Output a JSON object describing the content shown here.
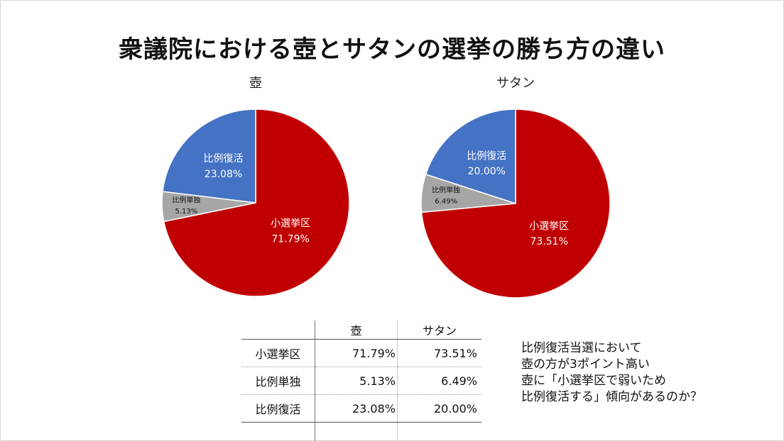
{
  "title": "衆議院における壺とサタンの選挙の勝ち方の違い",
  "chart_data": {
    "type": "pie",
    "charts": [
      {
        "title": "壺",
        "slices": [
          {
            "label": "小選挙区",
            "value": 71.79,
            "text": "71.79%",
            "color": "#c00000"
          },
          {
            "label": "比例単独",
            "value": 5.13,
            "text": "5.13%",
            "color": "#a6a6a6"
          },
          {
            "label": "比例復活",
            "value": 23.08,
            "text": "23.08%",
            "color": "#4472c4"
          }
        ]
      },
      {
        "title": "サタン",
        "slices": [
          {
            "label": "小選挙区",
            "value": 73.51,
            "text": "73.51%",
            "color": "#c00000"
          },
          {
            "label": "比例単独",
            "value": 6.49,
            "text": "6.49%",
            "color": "#a6a6a6"
          },
          {
            "label": "比例復活",
            "value": 20.0,
            "text": "20.00%",
            "color": "#4472c4"
          }
        ]
      }
    ]
  },
  "table": {
    "headers": [
      "",
      "壺",
      "サタン"
    ],
    "rows": [
      {
        "label": "小選挙区",
        "a": "71.79%",
        "b": "73.51%"
      },
      {
        "label": "比例単独",
        "a": "5.13%",
        "b": "6.49%"
      },
      {
        "label": "比例復活",
        "a": "23.08%",
        "b": "20.00%"
      }
    ]
  },
  "note": {
    "lines": [
      "比例復活当選において",
      "壺の方が3ポイント高い",
      "壺に「小選挙区で弱いため",
      "比例復活する」傾向があるのか？"
    ]
  }
}
